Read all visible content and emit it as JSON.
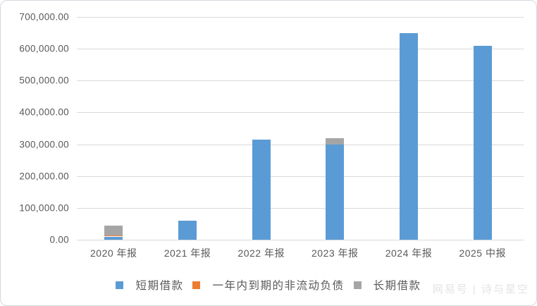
{
  "watermark": "网易号 | 诗与星空",
  "colors": {
    "bar_blue": "#5B9BD5",
    "bar_orange": "#ED7D31",
    "bar_gray": "#A5A5A5",
    "axis_text": "#595959",
    "gridline": "#D9D9D9",
    "frame_border": "#D3D9DE",
    "watermark_text": "#E1E3E5"
  },
  "chart_data": {
    "type": "bar",
    "stacked": true,
    "title": "",
    "categories": [
      "2020 年报",
      "2021 年报",
      "2022 年报",
      "2023 年报",
      "2024 年报",
      "2025 中报"
    ],
    "series": [
      {
        "name": "短期借款",
        "color": "#5B9BD5",
        "values": [
          10000,
          60000,
          315000,
          300000,
          650000,
          610000
        ]
      },
      {
        "name": "一年内到期的非流动负债",
        "color": "#ED7D31",
        "values": [
          4000,
          0,
          0,
          0,
          0,
          0
        ]
      },
      {
        "name": "长期借款",
        "color": "#A5A5A5",
        "values": [
          31000,
          0,
          0,
          20000,
          0,
          0
        ]
      }
    ],
    "y_ticks": [
      {
        "value": 0,
        "label": "0.00"
      },
      {
        "value": 100000,
        "label": "100,000.00"
      },
      {
        "value": 200000,
        "label": "200,000.00"
      },
      {
        "value": 300000,
        "label": "300,000.00"
      },
      {
        "value": 400000,
        "label": "400,000.00"
      },
      {
        "value": 500000,
        "label": "500,000.00"
      },
      {
        "value": 600000,
        "label": "600,000.00"
      },
      {
        "value": 700000,
        "label": "700,000.00"
      }
    ],
    "ylim": [
      0,
      700000
    ],
    "xlabel": "",
    "ylabel": "",
    "grid": true,
    "legend_position": "bottom"
  }
}
